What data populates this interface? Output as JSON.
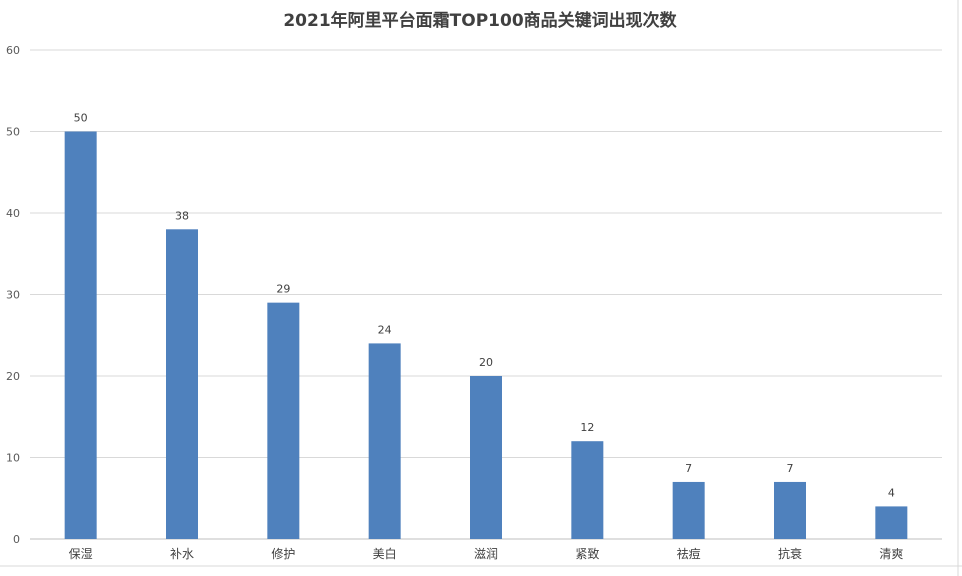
{
  "chart_data": {
    "type": "bar",
    "title": "2021年阿里平台面霜TOP100商品关键词出现次数",
    "categories": [
      "保湿",
      "补水",
      "修护",
      "美白",
      "滋润",
      "紧致",
      "祛痘",
      "抗衰",
      "清爽"
    ],
    "values": [
      50,
      38,
      29,
      24,
      20,
      12,
      7,
      7,
      4
    ],
    "ylim": [
      0,
      60
    ],
    "yticks": [
      0,
      10,
      20,
      30,
      40,
      50,
      60
    ],
    "grid": true,
    "legend": "none",
    "bar_color": "#4f81bd",
    "data_labels": true
  }
}
